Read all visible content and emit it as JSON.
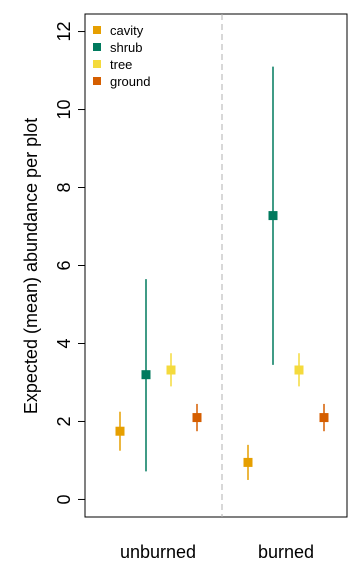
{
  "chart_data": {
    "type": "scatter",
    "ylabel": "Expected (mean) abundance per plot",
    "ylim": [
      -0.45,
      12.45
    ],
    "yticks": [
      0,
      2,
      4,
      6,
      8,
      10,
      12
    ],
    "groups": [
      "unburned",
      "burned"
    ],
    "separator": "dashed-vertical",
    "legend_position": "top-left",
    "series": [
      {
        "name": "cavity",
        "color": "#E69F00",
        "points": [
          {
            "group": "unburned",
            "mean": 1.75,
            "lower": 1.25,
            "upper": 2.25
          },
          {
            "group": "burned",
            "mean": 0.95,
            "lower": 0.5,
            "upper": 1.4
          }
        ]
      },
      {
        "name": "shrub",
        "color": "#007A5E",
        "points": [
          {
            "group": "unburned",
            "mean": 3.2,
            "lower": 0.72,
            "upper": 5.65
          },
          {
            "group": "burned",
            "mean": 7.28,
            "lower": 3.45,
            "upper": 11.1
          }
        ]
      },
      {
        "name": "tree",
        "color": "#F4DA3C",
        "points": [
          {
            "group": "unburned",
            "mean": 3.32,
            "lower": 2.9,
            "upper": 3.75
          },
          {
            "group": "burned",
            "mean": 3.32,
            "lower": 2.9,
            "upper": 3.75
          }
        ]
      },
      {
        "name": "ground",
        "color": "#D55E00",
        "points": [
          {
            "group": "unburned",
            "mean": 2.1,
            "lower": 1.75,
            "upper": 2.45
          },
          {
            "group": "burned",
            "mean": 2.1,
            "lower": 1.75,
            "upper": 2.45
          }
        ]
      }
    ]
  }
}
